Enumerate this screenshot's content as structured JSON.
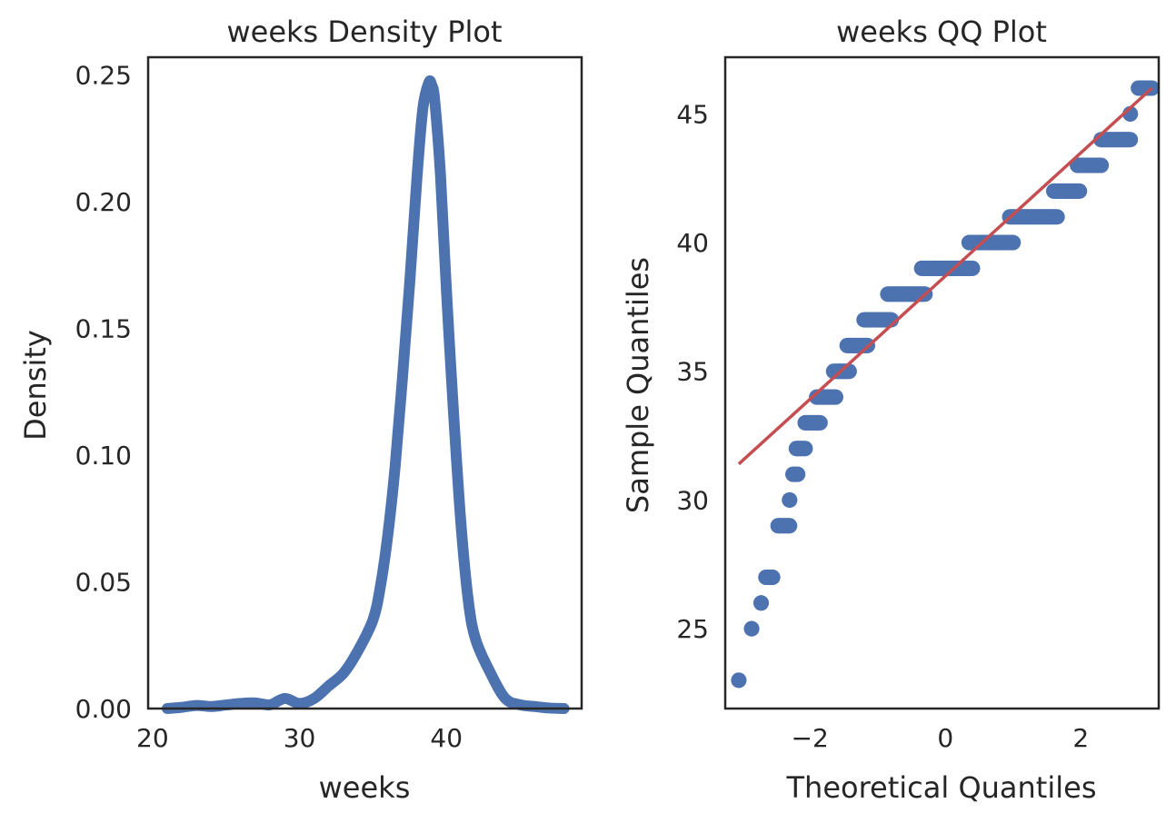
{
  "chart_data": [
    {
      "type": "line",
      "title": "weeks Density Plot",
      "xlabel": "weeks",
      "ylabel": "Density",
      "xlim": [
        19.7,
        49.2
      ],
      "ylim": [
        0,
        0.257
      ],
      "xticks": [
        20,
        30,
        40
      ],
      "yticks": [
        0.0,
        0.05,
        0.1,
        0.15,
        0.2,
        0.25
      ],
      "xtick_labels": [
        "20",
        "30",
        "40"
      ],
      "ytick_labels": [
        "0.00",
        "0.05",
        "0.10",
        "0.15",
        "0.20",
        "0.25"
      ],
      "grid": false,
      "series": [
        {
          "color": "#4c72b0",
          "x": [
            21.0,
            22.0,
            23.0,
            24.0,
            25.0,
            26.0,
            27.0,
            28.0,
            29.0,
            30.0,
            31.0,
            32.0,
            33.0,
            34.0,
            35.0,
            35.5,
            36.0,
            36.5,
            37.0,
            37.5,
            38.0,
            38.4,
            38.8,
            39.0,
            39.2,
            39.6,
            40.0,
            40.5,
            41.0,
            41.5,
            42.0,
            43.0,
            44.0,
            45.0,
            46.0,
            47.0,
            48.0
          ],
          "y": [
            0.0,
            0.0005,
            0.0012,
            0.0008,
            0.0014,
            0.002,
            0.0022,
            0.0015,
            0.004,
            0.002,
            0.004,
            0.009,
            0.014,
            0.023,
            0.035,
            0.048,
            0.068,
            0.095,
            0.13,
            0.168,
            0.21,
            0.237,
            0.247,
            0.246,
            0.24,
            0.21,
            0.165,
            0.115,
            0.072,
            0.042,
            0.027,
            0.014,
            0.004,
            0.0015,
            0.0008,
            0.0002,
            0.0
          ]
        }
      ]
    },
    {
      "type": "scatter",
      "title": "weeks QQ Plot",
      "xlabel": "Theoretical Quantiles",
      "ylabel": "Sample Quantiles",
      "xlim": [
        -3.25,
        3.15
      ],
      "ylim": [
        21.9,
        47.2
      ],
      "xticks": [
        -2,
        0,
        2
      ],
      "yticks": [
        25,
        30,
        35,
        40,
        45
      ],
      "xtick_labels": [
        "−2",
        "0",
        "2"
      ],
      "ytick_labels": [
        "25",
        "30",
        "35",
        "40",
        "45"
      ],
      "grid": false,
      "points_color": "#4c72b0",
      "line_color": "#c44e52",
      "reference_line": {
        "x": [
          -3.05,
          3.05
        ],
        "y": [
          31.4,
          46.0
        ]
      },
      "point_groups": [
        {
          "y": 23,
          "x_from": -3.05,
          "x_to": -3.05
        },
        {
          "y": 25,
          "x_from": -2.86,
          "x_to": -2.86
        },
        {
          "y": 26,
          "x_from": -2.72,
          "x_to": -2.72
        },
        {
          "y": 27,
          "x_from": -2.65,
          "x_to": -2.55
        },
        {
          "y": 29,
          "x_from": -2.47,
          "x_to": -2.3
        },
        {
          "y": 30,
          "x_from": -2.3,
          "x_to": -2.3
        },
        {
          "y": 31,
          "x_from": -2.25,
          "x_to": -2.18
        },
        {
          "y": 32,
          "x_from": -2.2,
          "x_to": -2.07
        },
        {
          "y": 33,
          "x_from": -2.07,
          "x_to": -1.85
        },
        {
          "y": 34,
          "x_from": -1.9,
          "x_to": -1.62
        },
        {
          "y": 35,
          "x_from": -1.65,
          "x_to": -1.42
        },
        {
          "y": 36,
          "x_from": -1.45,
          "x_to": -1.15
        },
        {
          "y": 37,
          "x_from": -1.2,
          "x_to": -0.8
        },
        {
          "y": 38,
          "x_from": -0.85,
          "x_to": -0.3
        },
        {
          "y": 39,
          "x_from": -0.35,
          "x_to": 0.4
        },
        {
          "y": 40,
          "x_from": 0.35,
          "x_to": 1.0
        },
        {
          "y": 41,
          "x_from": 0.95,
          "x_to": 1.65
        },
        {
          "y": 42,
          "x_from": 1.6,
          "x_to": 1.98
        },
        {
          "y": 43,
          "x_from": 1.95,
          "x_to": 2.3
        },
        {
          "y": 44,
          "x_from": 2.3,
          "x_to": 2.73
        },
        {
          "y": 45,
          "x_from": 2.73,
          "x_to": 2.73
        },
        {
          "y": 46,
          "x_from": 2.85,
          "x_to": 3.05
        }
      ]
    }
  ]
}
